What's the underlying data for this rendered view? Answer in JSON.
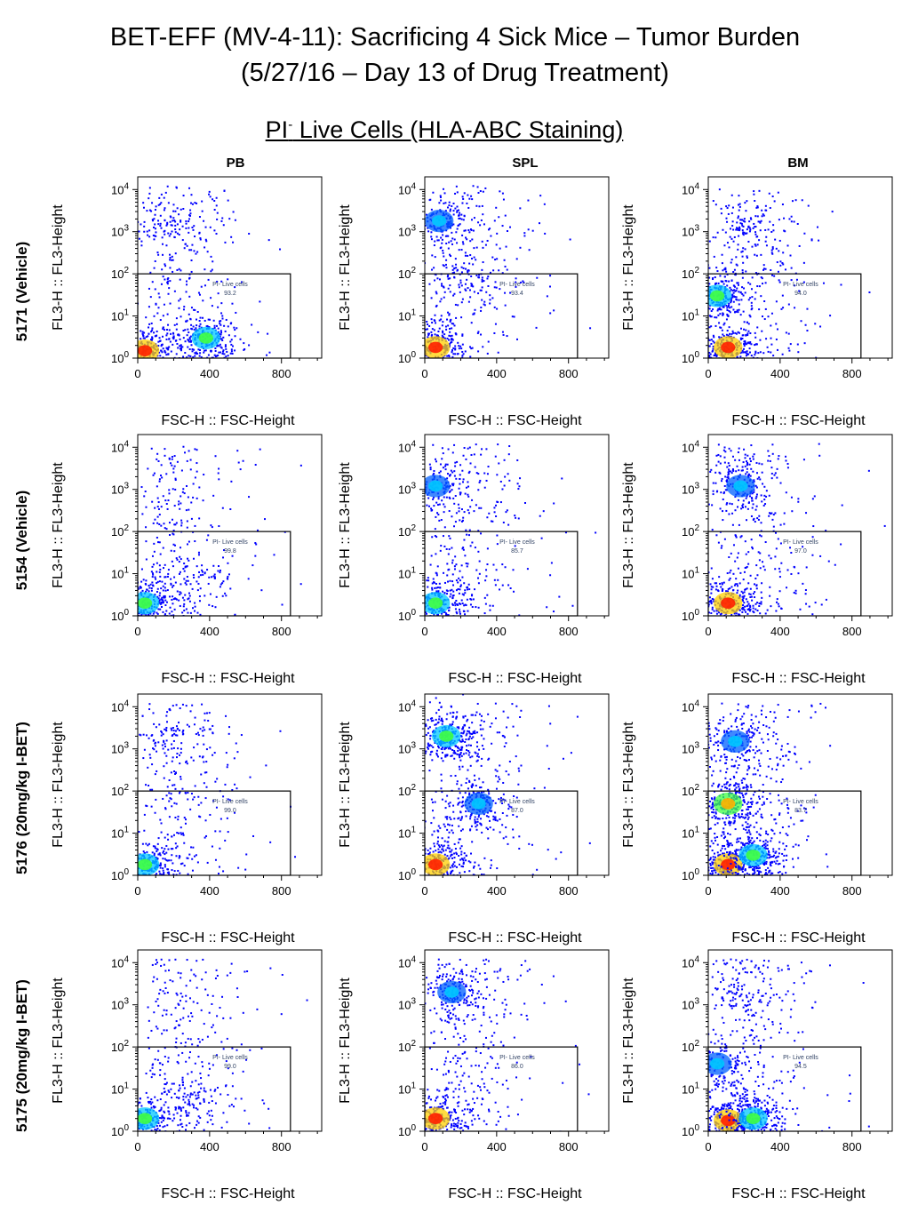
{
  "title_line1": "BET-EFF (MV-4-11): Sacrificing 4 Sick Mice – Tumor Burden",
  "title_line2": "(5/27/16 – Day 13 of Drug Treatment)",
  "subtitle_main": "PI",
  "subtitle_sup": "-",
  "subtitle_rest": " Live Cells (HLA-ABC Staining)",
  "columns": [
    "PB",
    "SPL",
    "BM"
  ],
  "rows": [
    "5171 (Vehicle)",
    "5154 (Vehicle)",
    "5176 (20mg/kg I-BET)",
    "5175 (20mg/kg I-BET)"
  ],
  "chart_data": {
    "type": "scatter",
    "plot_style": "pseudocolor density",
    "xlabel": "FSC-H :: FSC-Height",
    "ylabel": "FL3-H :: FL3-Height",
    "x_ticks": [
      "0",
      "400",
      "800"
    ],
    "x_tick_values": [
      0,
      400,
      800
    ],
    "xlim": [
      0,
      1024
    ],
    "yscale": "log",
    "y_ticks": [
      "10^0",
      "10^1",
      "10^2",
      "10^3",
      "10^4"
    ],
    "y_tick_values": [
      1,
      10,
      100,
      1000,
      10000
    ],
    "ylim": [
      1,
      20000
    ],
    "gate": {
      "label": "PI- Live cells",
      "x_range": [
        0,
        850
      ],
      "y_range": [
        1,
        100
      ]
    },
    "colors": {
      "low": "#0000ff",
      "mid": "#00c8ff",
      "high": "#40ff40",
      "peak": "#ffb000",
      "max": "#ff2000"
    },
    "panels": [
      {
        "row": "5171 (Vehicle)",
        "column": "PB",
        "gate_percent": "93.2",
        "populations": [
          {
            "x": 380,
            "y": 3,
            "density": "high"
          },
          {
            "x": 40,
            "y": 1.5,
            "density": "max"
          },
          {
            "x": 150,
            "y": 2000,
            "density": "low"
          }
        ]
      },
      {
        "row": "5171 (Vehicle)",
        "column": "SPL",
        "gate_percent": "93.4",
        "populations": [
          {
            "x": 60,
            "y": 1.8,
            "density": "max"
          },
          {
            "x": 80,
            "y": 1800,
            "density": "mid"
          },
          {
            "x": 250,
            "y": 80,
            "density": "low"
          }
        ]
      },
      {
        "row": "5171 (Vehicle)",
        "column": "BM",
        "gate_percent": "94.0",
        "populations": [
          {
            "x": 110,
            "y": 1.8,
            "density": "max"
          },
          {
            "x": 50,
            "y": 30,
            "density": "high"
          },
          {
            "x": 200,
            "y": 1500,
            "density": "low"
          }
        ]
      },
      {
        "row": "5154 (Vehicle)",
        "column": "PB",
        "gate_percent": "99.8",
        "populations": [
          {
            "x": 40,
            "y": 2,
            "density": "high"
          },
          {
            "x": 300,
            "y": 8,
            "density": "low"
          }
        ]
      },
      {
        "row": "5154 (Vehicle)",
        "column": "SPL",
        "gate_percent": "85.7",
        "populations": [
          {
            "x": 60,
            "y": 2,
            "density": "high"
          },
          {
            "x": 60,
            "y": 1200,
            "density": "mid"
          }
        ]
      },
      {
        "row": "5154 (Vehicle)",
        "column": "BM",
        "gate_percent": "97.0",
        "populations": [
          {
            "x": 110,
            "y": 2,
            "density": "max"
          },
          {
            "x": 180,
            "y": 1200,
            "density": "mid"
          }
        ]
      },
      {
        "row": "5176 (20mg/kg I-BET)",
        "column": "PB",
        "gate_percent": "99.0",
        "populations": [
          {
            "x": 40,
            "y": 1.8,
            "density": "high"
          },
          {
            "x": 120,
            "y": 2000,
            "density": "low"
          }
        ]
      },
      {
        "row": "5176 (20mg/kg I-BET)",
        "column": "SPL",
        "gate_percent": "87.0",
        "populations": [
          {
            "x": 60,
            "y": 1.8,
            "density": "max"
          },
          {
            "x": 120,
            "y": 2000,
            "density": "high"
          },
          {
            "x": 300,
            "y": 50,
            "density": "mid"
          }
        ]
      },
      {
        "row": "5176 (20mg/kg I-BET)",
        "column": "BM",
        "gate_percent": "83.7",
        "populations": [
          {
            "x": 110,
            "y": 1.8,
            "density": "max"
          },
          {
            "x": 110,
            "y": 50,
            "density": "peak"
          },
          {
            "x": 250,
            "y": 3,
            "density": "high"
          },
          {
            "x": 150,
            "y": 1500,
            "density": "mid"
          }
        ]
      },
      {
        "row": "5175 (20mg/kg I-BET)",
        "column": "PB",
        "gate_percent": "99.0",
        "populations": [
          {
            "x": 40,
            "y": 2,
            "density": "high"
          },
          {
            "x": 350,
            "y": 5,
            "density": "low"
          }
        ]
      },
      {
        "row": "5175 (20mg/kg I-BET)",
        "column": "SPL",
        "gate_percent": "86.0",
        "populations": [
          {
            "x": 60,
            "y": 2,
            "density": "max"
          },
          {
            "x": 150,
            "y": 2000,
            "density": "mid"
          }
        ]
      },
      {
        "row": "5175 (20mg/kg I-BET)",
        "column": "BM",
        "gate_percent": "94.5",
        "populations": [
          {
            "x": 110,
            "y": 1.8,
            "density": "max"
          },
          {
            "x": 250,
            "y": 2,
            "density": "high"
          },
          {
            "x": 50,
            "y": 40,
            "density": "mid"
          },
          {
            "x": 150,
            "y": 2000,
            "density": "low"
          }
        ]
      }
    ]
  }
}
